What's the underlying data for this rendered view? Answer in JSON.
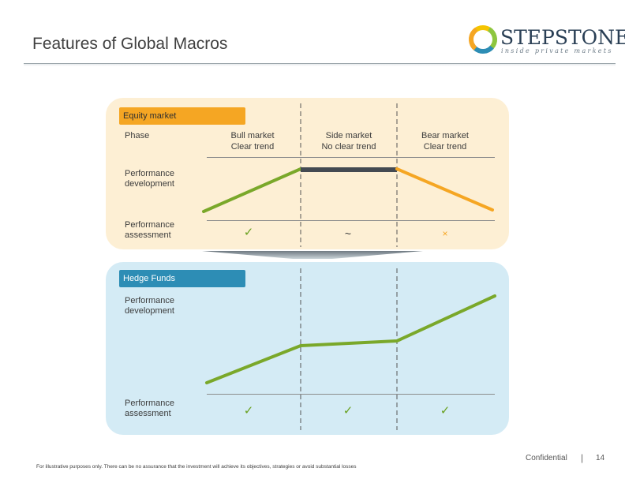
{
  "header": {
    "title": "Features of Global Macros",
    "logo": {
      "name": "STEPSTONE",
      "tagline": "inside private markets",
      "colors": [
        "#f5c400",
        "#8dc63f",
        "#2d8db5",
        "#f5a623"
      ]
    }
  },
  "equity_panel": {
    "tag": "Equity market",
    "rows": {
      "phase": "Phase",
      "performance_development": [
        "Performance",
        "development"
      ],
      "performance_assessment": [
        "Performance",
        "assessment"
      ]
    },
    "phases": [
      {
        "line1": "Bull market",
        "line2": "Clear trend",
        "assessment": "✓",
        "trend": "up"
      },
      {
        "line1": "Side market",
        "line2": "No clear trend",
        "assessment": "~",
        "trend": "flat"
      },
      {
        "line1": "Bear market",
        "line2": "Clear trend",
        "assessment": "×",
        "trend": "down"
      }
    ],
    "colors": {
      "bull": "#7aa82a",
      "side": "#444a52",
      "bear": "#f5a623",
      "panel": "#fdefd4"
    }
  },
  "hedge_panel": {
    "tag": "Hedge Funds",
    "rows": {
      "performance_development": [
        "Performance",
        "development"
      ],
      "performance_assessment": [
        "Performance",
        "assessment"
      ]
    },
    "assessments": [
      "✓",
      "✓",
      "✓"
    ],
    "colors": {
      "line": "#7aa82a",
      "panel": "#d4ebf5",
      "tag": "#2d8db5"
    }
  },
  "footer": {
    "note": "For illustrative purposes only. There can be no assurance that the investment will achieve its objectives, strategies or avoid substantial losses",
    "confidential": "Confidential",
    "separator": "|",
    "page": "14"
  }
}
